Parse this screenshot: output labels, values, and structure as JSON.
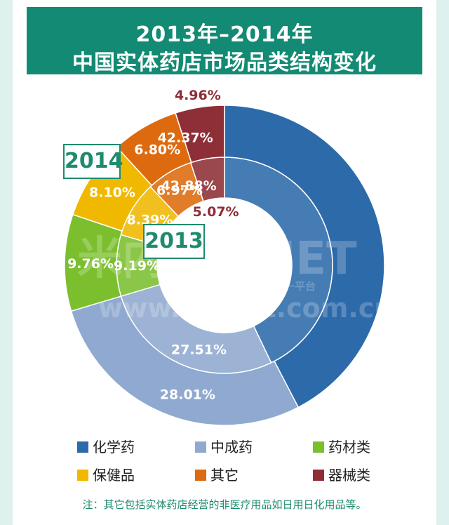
{
  "title": {
    "line1": "2013年–2014年",
    "line2": "中国实体药店市场品类结构变化"
  },
  "year_labels": {
    "outer": "2014",
    "inner": "2013"
  },
  "chart_data": {
    "type": "donut",
    "title": "2013年–2014年 中国实体药店市场品类结构变化",
    "categories": [
      "化学药",
      "中成药",
      "药材类",
      "保健品",
      "其它",
      "器械类"
    ],
    "colors": {
      "化学药": "#2d6aaa",
      "中成药": "#8fa9d0",
      "药材类": "#7bbf2e",
      "保健品": "#f1b800",
      "其它": "#dd6a0e",
      "器械类": "#8e2e36"
    },
    "series": [
      {
        "name": "2014",
        "ring": "outer",
        "values": [
          42.37,
          28.01,
          9.76,
          8.1,
          6.8,
          4.96
        ]
      },
      {
        "name": "2013",
        "ring": "inner",
        "values": [
          42.88,
          27.51,
          9.19,
          8.39,
          6.97,
          5.07
        ]
      }
    ],
    "unit": "%"
  },
  "legend": [
    {
      "label": "化学药",
      "key": "化学药"
    },
    {
      "label": "中成药",
      "key": "中成药"
    },
    {
      "label": "药材类",
      "key": "药材类"
    },
    {
      "label": "保健品",
      "key": "保健品"
    },
    {
      "label": "其它",
      "key": "其它"
    },
    {
      "label": "器械类",
      "key": "器械类"
    }
  ],
  "note": "注：其它包括实体药店经营的非医疗用品如日用日化用品等。",
  "watermark": {
    "brand": "米内 MENET",
    "slogan": "中国医药健康信息第一平台",
    "url": "www.menet.com.cn"
  }
}
